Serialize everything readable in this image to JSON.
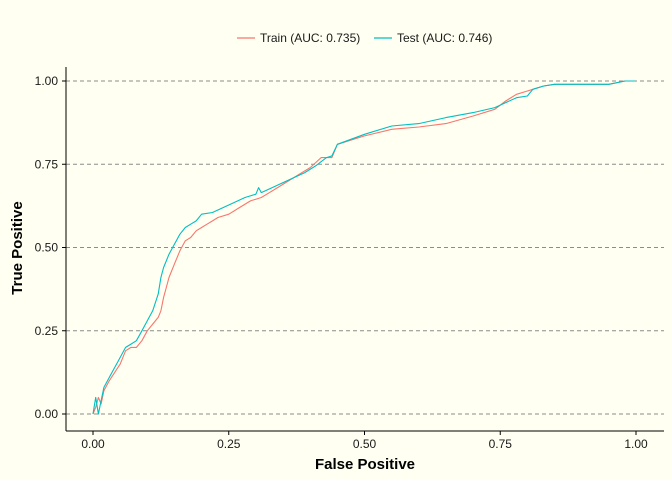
{
  "chart_data": {
    "type": "line",
    "xlabel": "False Positive",
    "ylabel": "True Positive",
    "xlim": [
      -0.05,
      1.05
    ],
    "ylim": [
      -0.05,
      1.05
    ],
    "x_ticks": [
      "0.00",
      "0.25",
      "0.50",
      "0.75",
      "1.00"
    ],
    "y_ticks": [
      "0.00",
      "0.25",
      "0.50",
      "0.75",
      "1.00"
    ],
    "grid": "horizontal dashed",
    "legend_position": "top",
    "series": [
      {
        "name": "Train (AUC: 0.735)",
        "color": "#f8766d",
        "points": [
          [
            0,
            0
          ],
          [
            0.005,
            0.02
          ],
          [
            0.01,
            0.05
          ],
          [
            0.015,
            0.03
          ],
          [
            0.02,
            0.07
          ],
          [
            0.03,
            0.1
          ],
          [
            0.05,
            0.15
          ],
          [
            0.06,
            0.19
          ],
          [
            0.07,
            0.2
          ],
          [
            0.08,
            0.2
          ],
          [
            0.09,
            0.22
          ],
          [
            0.1,
            0.25
          ],
          [
            0.11,
            0.27
          ],
          [
            0.12,
            0.29
          ],
          [
            0.125,
            0.31
          ],
          [
            0.13,
            0.35
          ],
          [
            0.135,
            0.38
          ],
          [
            0.14,
            0.41
          ],
          [
            0.15,
            0.45
          ],
          [
            0.16,
            0.49
          ],
          [
            0.17,
            0.52
          ],
          [
            0.18,
            0.53
          ],
          [
            0.19,
            0.55
          ],
          [
            0.2,
            0.56
          ],
          [
            0.21,
            0.57
          ],
          [
            0.22,
            0.58
          ],
          [
            0.23,
            0.59
          ],
          [
            0.25,
            0.6
          ],
          [
            0.27,
            0.62
          ],
          [
            0.29,
            0.64
          ],
          [
            0.31,
            0.65
          ],
          [
            0.32,
            0.66
          ],
          [
            0.34,
            0.68
          ],
          [
            0.36,
            0.7
          ],
          [
            0.38,
            0.72
          ],
          [
            0.4,
            0.74
          ],
          [
            0.42,
            0.77
          ],
          [
            0.44,
            0.77
          ],
          [
            0.45,
            0.81
          ],
          [
            0.5,
            0.835
          ],
          [
            0.55,
            0.855
          ],
          [
            0.6,
            0.862
          ],
          [
            0.65,
            0.872
          ],
          [
            0.7,
            0.895
          ],
          [
            0.74,
            0.915
          ],
          [
            0.76,
            0.94
          ],
          [
            0.78,
            0.96
          ],
          [
            0.8,
            0.97
          ],
          [
            0.81,
            0.975
          ],
          [
            0.83,
            0.985
          ],
          [
            0.85,
            0.99
          ],
          [
            0.9,
            0.99
          ],
          [
            0.95,
            0.99
          ],
          [
            0.98,
            1
          ],
          [
            1,
            1
          ]
        ]
      },
      {
        "name": "Test (AUC: 0.746)",
        "color": "#00bfc4",
        "points": [
          [
            0,
            0
          ],
          [
            0.005,
            0.05
          ],
          [
            0.01,
            0
          ],
          [
            0.015,
            0.04
          ],
          [
            0.02,
            0.08
          ],
          [
            0.03,
            0.11
          ],
          [
            0.05,
            0.17
          ],
          [
            0.06,
            0.2
          ],
          [
            0.07,
            0.21
          ],
          [
            0.08,
            0.22
          ],
          [
            0.09,
            0.25
          ],
          [
            0.1,
            0.28
          ],
          [
            0.11,
            0.31
          ],
          [
            0.12,
            0.36
          ],
          [
            0.125,
            0.41
          ],
          [
            0.13,
            0.44
          ],
          [
            0.14,
            0.48
          ],
          [
            0.15,
            0.51
          ],
          [
            0.16,
            0.54
          ],
          [
            0.17,
            0.56
          ],
          [
            0.18,
            0.57
          ],
          [
            0.19,
            0.58
          ],
          [
            0.2,
            0.6
          ],
          [
            0.22,
            0.605
          ],
          [
            0.24,
            0.62
          ],
          [
            0.26,
            0.635
          ],
          [
            0.28,
            0.65
          ],
          [
            0.3,
            0.66
          ],
          [
            0.305,
            0.68
          ],
          [
            0.31,
            0.665
          ],
          [
            0.33,
            0.68
          ],
          [
            0.35,
            0.695
          ],
          [
            0.37,
            0.71
          ],
          [
            0.39,
            0.725
          ],
          [
            0.41,
            0.745
          ],
          [
            0.43,
            0.77
          ],
          [
            0.44,
            0.775
          ],
          [
            0.45,
            0.81
          ],
          [
            0.5,
            0.84
          ],
          [
            0.55,
            0.865
          ],
          [
            0.6,
            0.872
          ],
          [
            0.65,
            0.89
          ],
          [
            0.7,
            0.905
          ],
          [
            0.74,
            0.92
          ],
          [
            0.76,
            0.935
          ],
          [
            0.78,
            0.95
          ],
          [
            0.8,
            0.955
          ],
          [
            0.81,
            0.975
          ],
          [
            0.83,
            0.985
          ],
          [
            0.85,
            0.99
          ],
          [
            0.9,
            0.99
          ],
          [
            0.95,
            0.99
          ],
          [
            0.98,
            1
          ],
          [
            1,
            1
          ]
        ]
      }
    ]
  }
}
